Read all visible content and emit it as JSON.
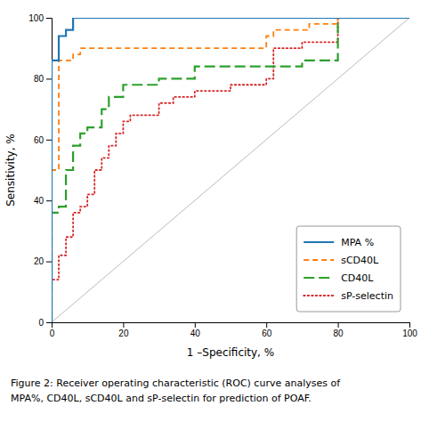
{
  "chart_data": {
    "type": "line",
    "x_label": "1 –Specificity, %",
    "y_label": "Sensitivity, %",
    "caption": [
      "Figure 2: Receiver operating characteristic (ROC) curve analyses of",
      "MPA%, CD40L, sCD40L and sP-selectin for prediction of POAF."
    ],
    "xlim": [
      0,
      100
    ],
    "ylim": [
      0,
      100
    ],
    "xticks": [
      0,
      20,
      40,
      60,
      80,
      100
    ],
    "yticks": [
      0,
      20,
      40,
      60,
      80,
      100
    ],
    "grid": false,
    "legend": "lower right",
    "series": [
      {
        "name": "MPA %",
        "line_style": "solid",
        "x": [
          0,
          0,
          2,
          2,
          4,
          4,
          6,
          6,
          10,
          10,
          14,
          14,
          50,
          50,
          100
        ],
        "values": [
          0,
          86,
          86,
          94,
          94,
          96,
          96,
          100,
          100,
          100,
          100,
          100,
          100,
          100,
          100
        ]
      },
      {
        "name": "sCD40L",
        "line_style": "dashed",
        "x": [
          0,
          0,
          2,
          2,
          6,
          6,
          8,
          8,
          10,
          10,
          20,
          20,
          60,
          60,
          62,
          62,
          72,
          72,
          80,
          80,
          100
        ],
        "values": [
          0,
          50,
          50,
          86,
          86,
          88,
          88,
          90,
          90,
          90,
          90,
          90,
          90,
          94,
          94,
          96,
          96,
          98,
          98,
          100,
          100
        ]
      },
      {
        "name": "CD40L",
        "line_style": "longdash",
        "x": [
          0,
          0,
          2,
          2,
          4,
          4,
          6,
          6,
          8,
          8,
          10,
          10,
          14,
          14,
          16,
          16,
          20,
          20,
          30,
          30,
          40,
          40,
          60,
          60,
          70,
          70,
          80,
          80,
          100
        ],
        "values": [
          0,
          36,
          36,
          38,
          38,
          50,
          50,
          58,
          58,
          62,
          62,
          64,
          64,
          70,
          70,
          74,
          74,
          78,
          78,
          80,
          80,
          84,
          84,
          84,
          84,
          86,
          86,
          100,
          100
        ]
      },
      {
        "name": "sP-selectin",
        "line_style": "dotted",
        "x": [
          0,
          0,
          2,
          2,
          4,
          4,
          6,
          6,
          8,
          8,
          10,
          10,
          12,
          12,
          14,
          14,
          16,
          16,
          18,
          18,
          20,
          20,
          22,
          22,
          30,
          30,
          34,
          34,
          40,
          40,
          50,
          50,
          60,
          60,
          62,
          62,
          70,
          70,
          80,
          80,
          100
        ],
        "values": [
          0,
          14,
          14,
          22,
          22,
          28,
          28,
          36,
          36,
          38,
          38,
          42,
          42,
          50,
          50,
          54,
          54,
          58,
          58,
          62,
          62,
          66,
          66,
          68,
          68,
          72,
          72,
          74,
          74,
          76,
          76,
          78,
          78,
          80,
          80,
          90,
          90,
          92,
          92,
          100,
          100
        ]
      }
    ]
  }
}
